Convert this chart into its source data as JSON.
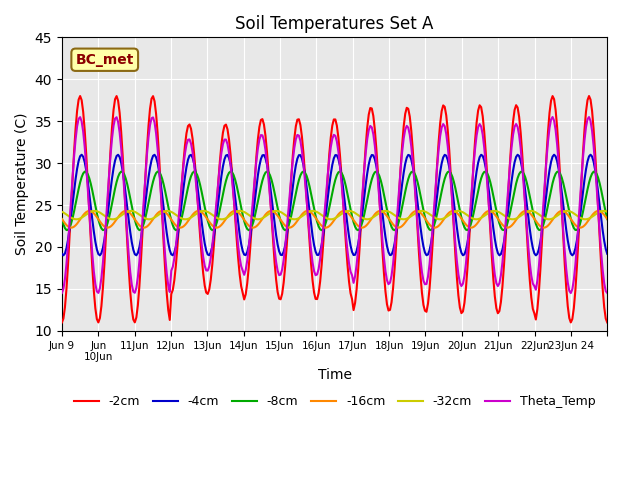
{
  "title": "Soil Temperatures Set A",
  "xlabel": "Time",
  "ylabel": "Soil Temperature (C)",
  "ylim": [
    10,
    45
  ],
  "xlim_start": 0,
  "xlim_end": 15,
  "annotation_text": "BC_met",
  "annotation_bg": "#FFFFAA",
  "annotation_border": "#8B6914",
  "colors": {
    "-2cm": "#FF0000",
    "-4cm": "#0000CC",
    "-8cm": "#00AA00",
    "-16cm": "#FF8800",
    "-32cm": "#CCCC00",
    "Theta_Temp": "#CC00CC"
  },
  "bg_color": "#E8E8E8",
  "grid_color": "#FFFFFF",
  "xtick_positions": [
    0,
    1,
    2,
    3,
    4,
    5,
    6,
    7,
    8,
    9,
    10,
    11,
    12,
    13,
    14,
    15
  ],
  "xtick_labels": [
    "Jun 9",
    "Jun\n10Jun",
    "11Jun",
    "12Jun",
    "13Jun",
    "14Jun",
    "15Jun",
    "16Jun",
    "17Jun",
    "18Jun",
    "19Jun",
    "20Jun",
    "21Jun",
    "22Jun",
    "23Jun 24",
    ""
  ],
  "ytick_values": [
    10,
    15,
    20,
    25,
    30,
    35,
    40,
    45
  ]
}
